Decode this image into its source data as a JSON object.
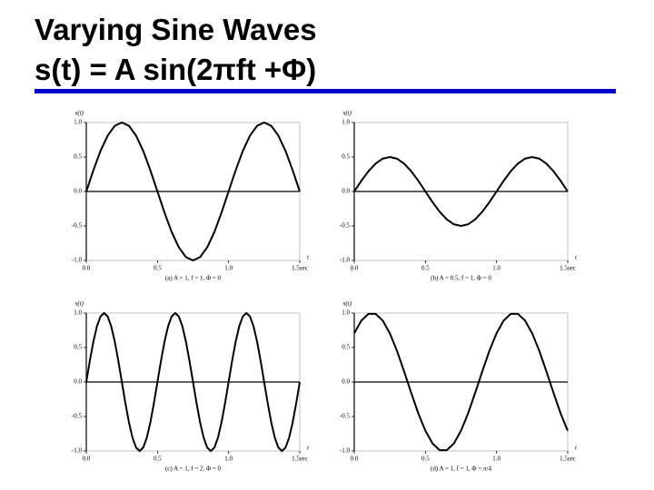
{
  "title": "Varying Sine Waves",
  "formula": "s(t) = A sin(2πft +Φ)",
  "chart_data": [
    {
      "type": "line",
      "caption": "(a) A = 1, f = 1, Φ = 0",
      "y_label": "s(t)",
      "x_label": "t",
      "color": "#000000",
      "x": [
        0,
        0.05,
        0.1,
        0.15,
        0.2,
        0.25,
        0.3,
        0.35,
        0.4,
        0.45,
        0.5,
        0.55,
        0.6,
        0.65,
        0.7,
        0.75,
        0.8,
        0.85,
        0.9,
        0.95,
        1,
        1.05,
        1.1,
        1.15,
        1.2,
        1.25,
        1.3,
        1.35,
        1.4,
        1.45,
        1.5
      ],
      "values": [
        0,
        0.309,
        0.588,
        0.809,
        0.951,
        1,
        0.951,
        0.809,
        0.588,
        0.309,
        0,
        -0.309,
        -0.588,
        -0.809,
        -0.951,
        -1,
        -0.951,
        -0.809,
        -0.588,
        -0.309,
        0,
        0.309,
        0.588,
        0.809,
        0.951,
        1,
        0.951,
        0.809,
        0.588,
        0.309,
        0
      ],
      "xlim": [
        0,
        1.5
      ],
      "ylim": [
        -1,
        1
      ],
      "xticks": [
        {
          "value": 0,
          "label": "0.0"
        },
        0.5,
        {
          "value": 1,
          "label": "1.0"
        },
        {
          "value": 1.5,
          "label": "1.5sec"
        }
      ],
      "yticks": [
        {
          "value": 1,
          "label": "1.0"
        },
        0.5,
        {
          "value": 0,
          "label": "0.0"
        },
        -0.5,
        {
          "value": -1,
          "label": "-1.0"
        }
      ]
    },
    {
      "type": "line",
      "caption": "(b) A = 0.5, f = 1, Φ = 0",
      "y_label": "s(t)",
      "x_label": "t",
      "color": "#000000",
      "x": [
        0,
        0.05,
        0.1,
        0.15,
        0.2,
        0.25,
        0.3,
        0.35,
        0.4,
        0.45,
        0.5,
        0.55,
        0.6,
        0.65,
        0.7,
        0.75,
        0.8,
        0.85,
        0.9,
        0.95,
        1,
        1.05,
        1.1,
        1.15,
        1.2,
        1.25,
        1.3,
        1.35,
        1.4,
        1.45,
        1.5
      ],
      "values": [
        0,
        0.1545,
        0.294,
        0.4045,
        0.4755,
        0.5,
        0.4755,
        0.4045,
        0.294,
        0.1545,
        0,
        -0.1545,
        -0.294,
        -0.4045,
        -0.4755,
        -0.5,
        -0.4755,
        -0.4045,
        -0.294,
        -0.1545,
        0,
        0.1545,
        0.294,
        0.4045,
        0.4755,
        0.5,
        0.4755,
        0.4045,
        0.294,
        0.1545,
        0
      ],
      "xlim": [
        0,
        1.5
      ],
      "ylim": [
        -1,
        1
      ],
      "xticks": [
        {
          "value": 0,
          "label": "0.0"
        },
        0.5,
        {
          "value": 1,
          "label": "1.0"
        },
        {
          "value": 1.5,
          "label": "1.5sec"
        }
      ],
      "yticks": [
        {
          "value": 1,
          "label": "1.0"
        },
        0.5,
        {
          "value": 0,
          "label": "0.0"
        },
        -0.5,
        {
          "value": -1,
          "label": "-1.0"
        }
      ]
    },
    {
      "type": "line",
      "caption": "(c) A = 1, f = 2, Φ = 0",
      "y_label": "s(t)",
      "x_label": "t",
      "color": "#000000",
      "x": [
        0,
        0.025,
        0.05,
        0.075,
        0.1,
        0.125,
        0.15,
        0.175,
        0.2,
        0.225,
        0.25,
        0.275,
        0.3,
        0.325,
        0.35,
        0.375,
        0.4,
        0.425,
        0.45,
        0.475,
        0.5,
        0.525,
        0.55,
        0.575,
        0.6,
        0.625,
        0.65,
        0.675,
        0.7,
        0.725,
        0.75,
        0.775,
        0.8,
        0.825,
        0.85,
        0.875,
        0.9,
        0.925,
        0.95,
        0.975,
        1,
        1.025,
        1.05,
        1.075,
        1.1,
        1.125,
        1.15,
        1.175,
        1.2,
        1.225,
        1.25,
        1.275,
        1.3,
        1.325,
        1.35,
        1.375,
        1.4,
        1.425,
        1.45,
        1.475,
        1.5
      ],
      "values": [
        0,
        0.309,
        0.588,
        0.809,
        0.951,
        1,
        0.951,
        0.809,
        0.588,
        0.309,
        0,
        -0.309,
        -0.588,
        -0.809,
        -0.951,
        -1,
        -0.951,
        -0.809,
        -0.588,
        -0.309,
        0,
        0.309,
        0.588,
        0.809,
        0.951,
        1,
        0.951,
        0.809,
        0.588,
        0.309,
        0,
        -0.309,
        -0.588,
        -0.809,
        -0.951,
        -1,
        -0.951,
        -0.809,
        -0.588,
        -0.309,
        0,
        0.309,
        0.588,
        0.809,
        0.951,
        1,
        0.951,
        0.809,
        0.588,
        0.309,
        0,
        -0.309,
        -0.588,
        -0.809,
        -0.951,
        -1,
        -0.951,
        -0.809,
        -0.588,
        -0.309,
        0
      ],
      "xlim": [
        0,
        1.5
      ],
      "ylim": [
        -1,
        1
      ],
      "xticks": [
        {
          "value": 0,
          "label": "0.0"
        },
        0.5,
        {
          "value": 1,
          "label": "1.0"
        },
        {
          "value": 1.5,
          "label": "1.5sec"
        }
      ],
      "yticks": [
        {
          "value": 1,
          "label": "1.0"
        },
        0.5,
        {
          "value": 0,
          "label": "0.0"
        },
        -0.5,
        {
          "value": -1,
          "label": "-1.0"
        }
      ]
    },
    {
      "type": "line",
      "caption": "(d) A = 1, f = 1, Φ = π/4",
      "y_label": "s(t)",
      "x_label": "t",
      "color": "#000000",
      "x": [
        0,
        0.05,
        0.1,
        0.15,
        0.2,
        0.25,
        0.3,
        0.35,
        0.4,
        0.45,
        0.5,
        0.55,
        0.6,
        0.65,
        0.7,
        0.75,
        0.8,
        0.85,
        0.9,
        0.95,
        1,
        1.05,
        1.1,
        1.15,
        1.2,
        1.25,
        1.3,
        1.35,
        1.4,
        1.45,
        1.5
      ],
      "values": [
        0.707,
        0.891,
        0.988,
        0.988,
        0.891,
        0.707,
        0.454,
        0.156,
        -0.156,
        -0.454,
        -0.707,
        -0.891,
        -0.988,
        -0.988,
        -0.891,
        -0.707,
        -0.454,
        -0.156,
        0.156,
        0.454,
        0.707,
        0.891,
        0.988,
        0.988,
        0.891,
        0.707,
        0.454,
        0.156,
        -0.156,
        -0.454,
        -0.707
      ],
      "xlim": [
        0,
        1.5
      ],
      "ylim": [
        -1,
        1
      ],
      "xticks": [
        {
          "value": 0,
          "label": "0.0"
        },
        0.5,
        {
          "value": 1,
          "label": "1.0"
        },
        {
          "value": 1.5,
          "label": "1.5sec"
        }
      ],
      "yticks": [
        {
          "value": 1,
          "label": "1.0"
        },
        0.5,
        {
          "value": 0,
          "label": "0.0"
        },
        -0.5,
        {
          "value": -1,
          "label": "-1.0"
        }
      ]
    }
  ]
}
